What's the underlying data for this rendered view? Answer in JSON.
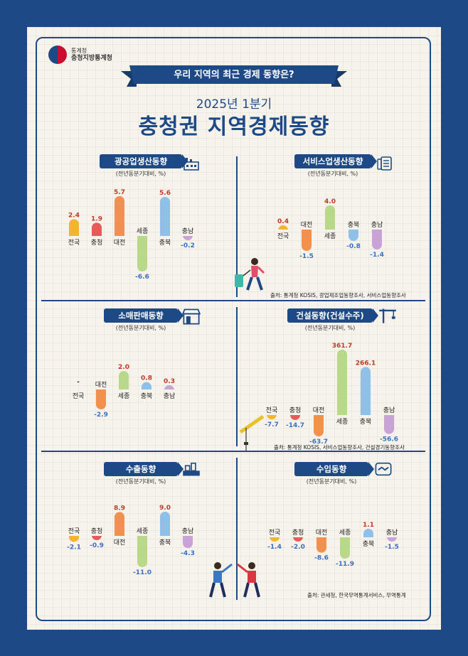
{
  "header": {
    "agency_line1": "통계청",
    "agency_line2": "충청지방통계청",
    "ribbon": "우리 지역의 최근 경제 동향은?",
    "period": "2025년 1분기",
    "title": "충청권 지역경제동향"
  },
  "colors": {
    "navy": "#1d4a86",
    "positive_label": "#c0392b",
    "negative_label": "#3a6fc4",
    "bars": {
      "전국": "#f2b431",
      "충청": "#e75a57",
      "대전": "#f2914f",
      "세종": "#b8d98a",
      "충북": "#8fc1e8",
      "충남": "#c9a2d8"
    }
  },
  "panels": [
    {
      "title": "광공업생산동향",
      "subtitle": "(전년동분기대비, %)",
      "icon": "factory-icon"
    },
    {
      "title": "서비스업생산동향",
      "subtitle": "(전년동분기대비, %)",
      "icon": "document-icon"
    },
    {
      "title": "소매판매동향",
      "subtitle": "(전년동분기대비, %)",
      "icon": "store-icon"
    },
    {
      "title": "건설동향(건설수주)",
      "subtitle": "(전년동분기대비, %)",
      "icon": "crane-icon"
    },
    {
      "title": "수출동향",
      "subtitle": "(전년동분기대비, %)",
      "icon": "port-icon"
    },
    {
      "title": "수입동향",
      "subtitle": "(전년동분기대비, %)",
      "icon": "handshake-icon"
    }
  ],
  "sources": [
    "출처: 통계청 KOSIS, 광업제조업동향조사, 서비스업동향조사",
    "출처: 통계청 KOSIS, 서비스업동향조사, 건설경기동향조사",
    "출처: 관세청, 한국무역통계서비스, 무역통계"
  ],
  "chart_data": [
    {
      "type": "bar",
      "title": "광공업생산동향",
      "subtitle": "(전년동분기대비, %)",
      "categories": [
        "전국",
        "충청",
        "대전",
        "세종",
        "충북",
        "충남"
      ],
      "values": [
        2.4,
        1.9,
        5.7,
        -6.6,
        5.6,
        -0.2
      ],
      "labels": [
        "2.4",
        "1.9",
        "5.7",
        "-6.6",
        "5.6",
        "-0.2"
      ]
    },
    {
      "type": "bar",
      "title": "서비스업생산동향",
      "subtitle": "(전년동분기대비, %)",
      "categories": [
        "전국",
        "대전",
        "세종",
        "충북",
        "충남"
      ],
      "values": [
        0.4,
        -1.5,
        4.0,
        -0.8,
        -1.4
      ],
      "labels": [
        "0.4",
        "-1.5",
        "4.0",
        "-0.8",
        "-1.4"
      ]
    },
    {
      "type": "bar",
      "title": "소매판매동향",
      "subtitle": "(전년동분기대비, %)",
      "categories": [
        "전국",
        "대전",
        "세종",
        "충북",
        "충남"
      ],
      "values": [
        0,
        -2.9,
        2.0,
        0.8,
        0.3
      ],
      "labels": [
        "-",
        "-2.9",
        "2.0",
        "0.8",
        "0.3"
      ]
    },
    {
      "type": "bar",
      "title": "건설동향(건설수주)",
      "subtitle": "(전년동분기대비, %)",
      "categories": [
        "전국",
        "충청",
        "대전",
        "세종",
        "충북",
        "충남"
      ],
      "values": [
        -7.7,
        -14.7,
        -63.7,
        361.7,
        266.1,
        -56.6
      ],
      "labels": [
        "-7.7",
        "-14.7",
        "-63.7",
        "361.7",
        "266.1",
        "-56.6"
      ]
    },
    {
      "type": "bar",
      "title": "수출동향",
      "subtitle": "(전년동분기대비, %)",
      "categories": [
        "전국",
        "충청",
        "대전",
        "세종",
        "충북",
        "충남"
      ],
      "values": [
        -2.1,
        -0.9,
        8.9,
        -11.0,
        9.0,
        -4.3
      ],
      "labels": [
        "-2.1",
        "-0.9",
        "8.9",
        "-11.0",
        "9.0",
        "-4.3"
      ]
    },
    {
      "type": "bar",
      "title": "수입동향",
      "subtitle": "(전년동분기대비, %)",
      "categories": [
        "전국",
        "충청",
        "대전",
        "세종",
        "충북",
        "충남"
      ],
      "values": [
        -1.4,
        -2.0,
        -8.6,
        -11.9,
        1.1,
        -1.5
      ],
      "labels": [
        "-1.4",
        "-2.0",
        "-8.6",
        "-11.9",
        "1.1",
        "-1.5"
      ]
    }
  ]
}
